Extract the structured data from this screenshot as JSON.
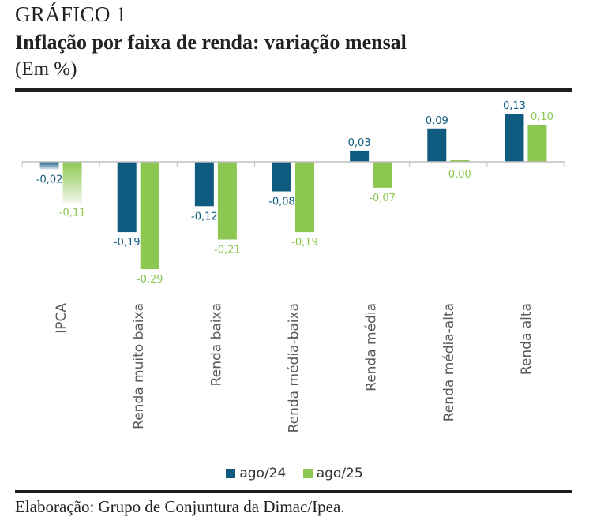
{
  "header": {
    "figure_label": "GRÁFICO 1",
    "title": "Inflação por faixa de renda: variação mensal",
    "unit": "(Em %)"
  },
  "footer": {
    "source": "Elaboração: Grupo de Conjuntura da Dimac/Ipea."
  },
  "chart_data": {
    "type": "bar",
    "title": "Inflação por faixa de renda: variação mensal",
    "xlabel": "",
    "ylabel": "(Em %)",
    "categories": [
      "IPCA",
      "Renda muito baixa",
      "Renda baixa",
      "Renda média-baixa",
      "Renda média",
      "Renda média-alta",
      "Renda alta"
    ],
    "series": [
      {
        "name": "ago/24",
        "color": "#0f5b80",
        "values": [
          -0.02,
          -0.19,
          -0.12,
          -0.08,
          0.03,
          0.09,
          0.13
        ],
        "labels": [
          "-0,02",
          "-0,19",
          "-0,12",
          "-0,08",
          "0,03",
          "0,09",
          "0,13"
        ]
      },
      {
        "name": "ago/25",
        "color": "#8cc752",
        "values": [
          -0.11,
          -0.29,
          -0.21,
          -0.19,
          -0.07,
          0.0,
          0.1
        ],
        "labels": [
          "-0,11",
          "-0,29",
          "-0,21",
          "-0,19",
          "-0,07",
          "0,00",
          "0,10"
        ]
      }
    ],
    "highlighted_category": "IPCA",
    "ylim": [
      -0.29,
      0.13
    ],
    "grid": false,
    "y_axis_visible": false,
    "legend_position": "bottom",
    "axis_color": "#bfbfbf",
    "label_text_color": "#595959"
  }
}
